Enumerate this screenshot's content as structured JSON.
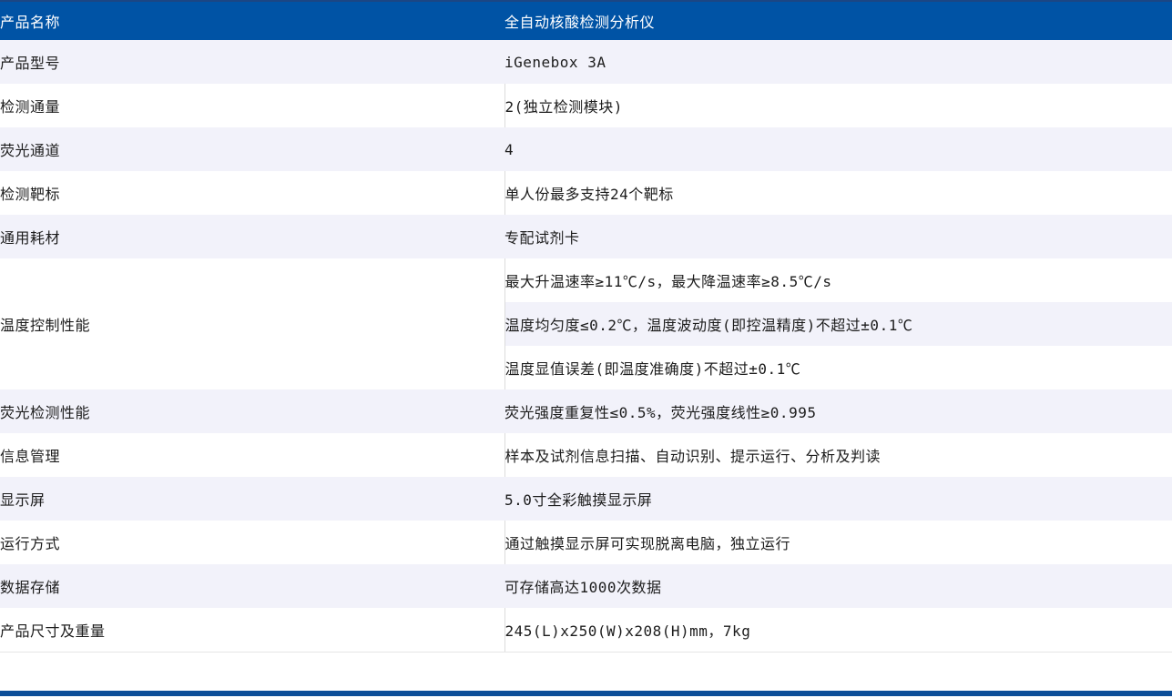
{
  "table": {
    "header": {
      "label": "产品名称",
      "value": "全自动核酸检测分析仪"
    },
    "rows_top": [
      {
        "label": "产品型号",
        "value": "iGenebox 3A"
      },
      {
        "label": "检测通量",
        "value": "2(独立检测模块)"
      },
      {
        "label": "荧光通道",
        "value": "4"
      },
      {
        "label": "检测靶标",
        "value": "单人份最多支持24个靶标"
      },
      {
        "label": "通用耗材",
        "value": "专配试剂卡"
      }
    ],
    "temp_group": {
      "label": "温度控制性能",
      "values": [
        "最大升温速率≥11℃/s，最大降温速率≥8.5℃/s",
        "温度均匀度≤0.2℃，温度波动度(即控温精度)不超过±0.1℃",
        "温度显值误差(即温度准确度)不超过±0.1℃"
      ]
    },
    "rows_bottom": [
      {
        "label": "荧光检测性能",
        "value": "荧光强度重复性≤0.5%，荧光强度线性≥0.995"
      },
      {
        "label": "信息管理",
        "value": "样本及试剂信息扫描、自动识别、提示运行、分析及判读"
      },
      {
        "label": "显示屏",
        "value": "5.0寸全彩触摸显示屏"
      },
      {
        "label": "运行方式",
        "value": "通过触摸显示屏可实现脱离电脑，独立运行"
      },
      {
        "label": "数据存储",
        "value": "可存储高达1000次数据"
      },
      {
        "label": "产品尺寸及重量",
        "value": "245(L)x250(W)x208(H)mm，7kg"
      }
    ]
  },
  "colors": {
    "header_blue": "#0053a5",
    "header_top_edge": "#1b4684",
    "stripe_lavender": "#f2f2fa",
    "divider_gray": "#dcdcdc",
    "bottom_accent_bar": "#0d4f99",
    "text": "#1c1c1c"
  }
}
